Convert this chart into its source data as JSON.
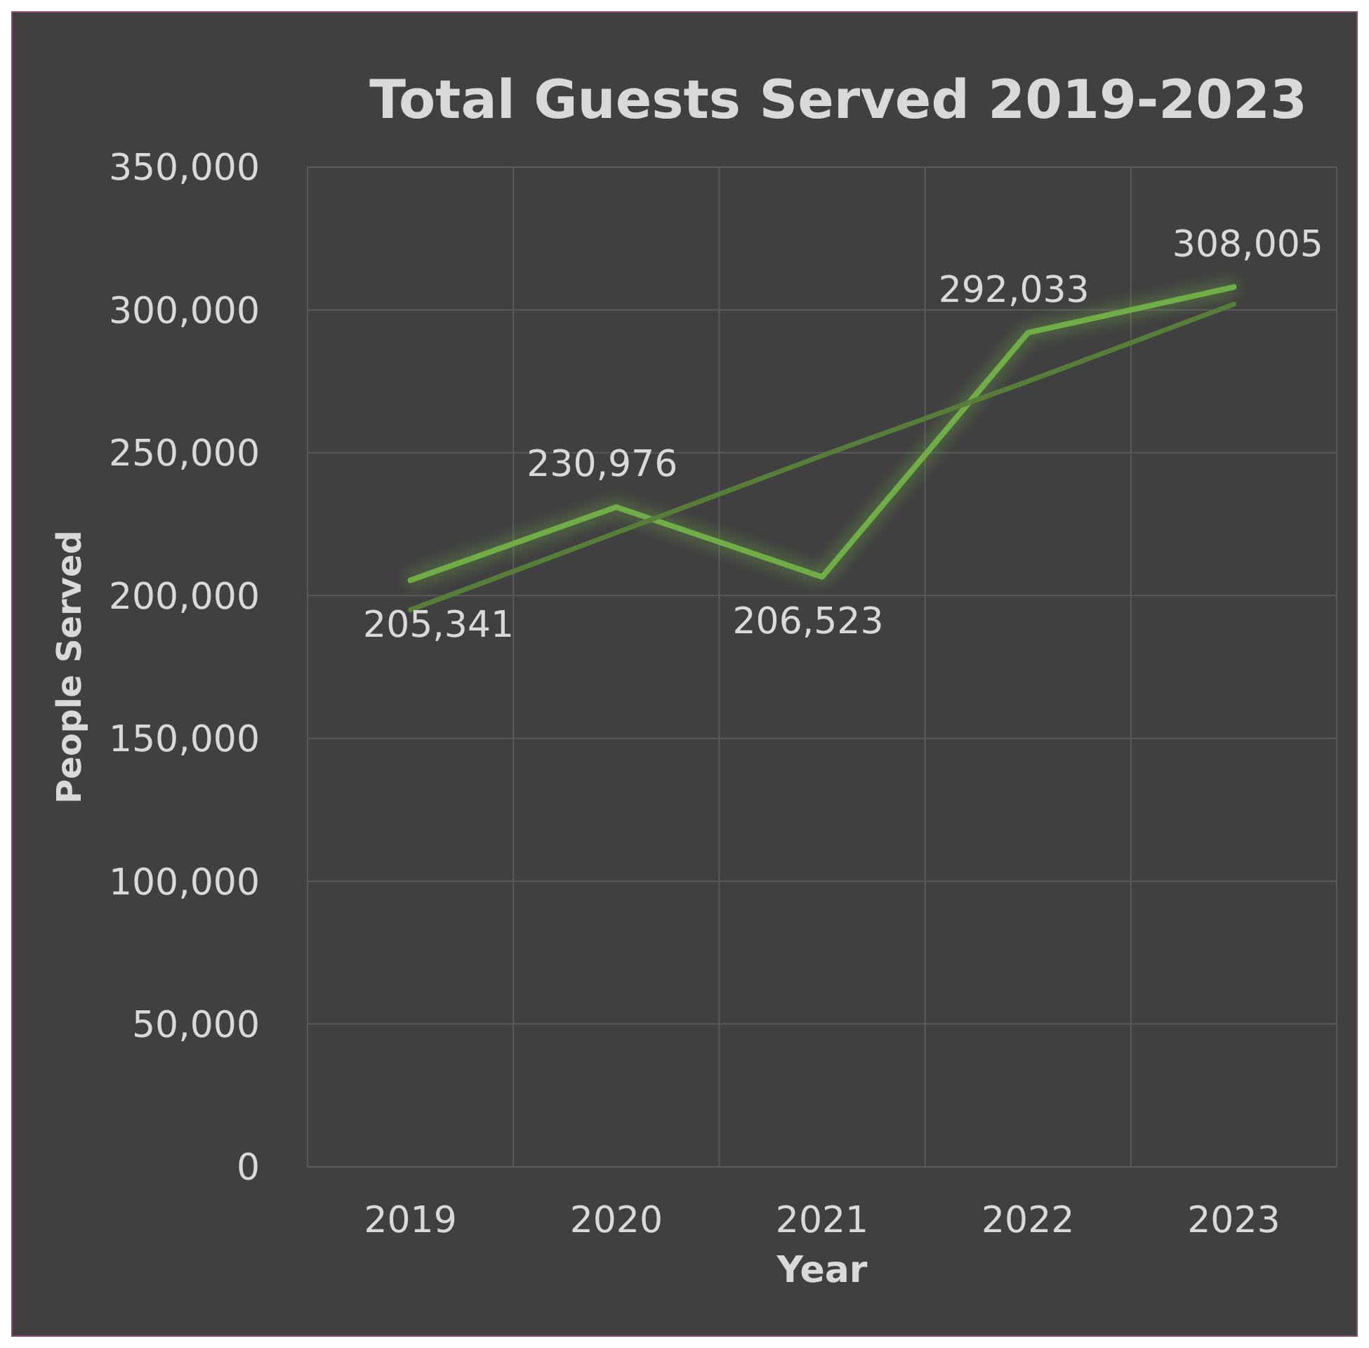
{
  "chart_data": {
    "type": "line",
    "title": "Total Guests Served 2019-2023",
    "xlabel": "Year",
    "ylabel": "People Served",
    "categories": [
      "2019",
      "2020",
      "2021",
      "2022",
      "2023"
    ],
    "series": [
      {
        "color": "#70ad47",
        "values": [
          205341,
          230976,
          206523,
          292033,
          308005
        ],
        "value_labels": [
          "205,341",
          "230,976",
          "206,523",
          "292,033",
          "308,005"
        ]
      },
      {
        "color": "#567d3a",
        "values": [
          195000,
          222000,
          249000,
          275000,
          302000
        ]
      }
    ],
    "ylim": [
      0,
      350000
    ],
    "yticks": [
      {
        "value": 0,
        "label": "0"
      },
      {
        "value": 50000,
        "label": "50,000"
      },
      {
        "value": 100000,
        "label": "100,000"
      },
      {
        "value": 150000,
        "label": "150,000"
      },
      {
        "value": 200000,
        "label": "200,000"
      },
      {
        "value": 250000,
        "label": "250,000"
      },
      {
        "value": 300000,
        "label": "300,000"
      },
      {
        "value": 350000,
        "label": "350,000"
      }
    ],
    "grid": true,
    "marker": "none",
    "line_style": "solid"
  }
}
